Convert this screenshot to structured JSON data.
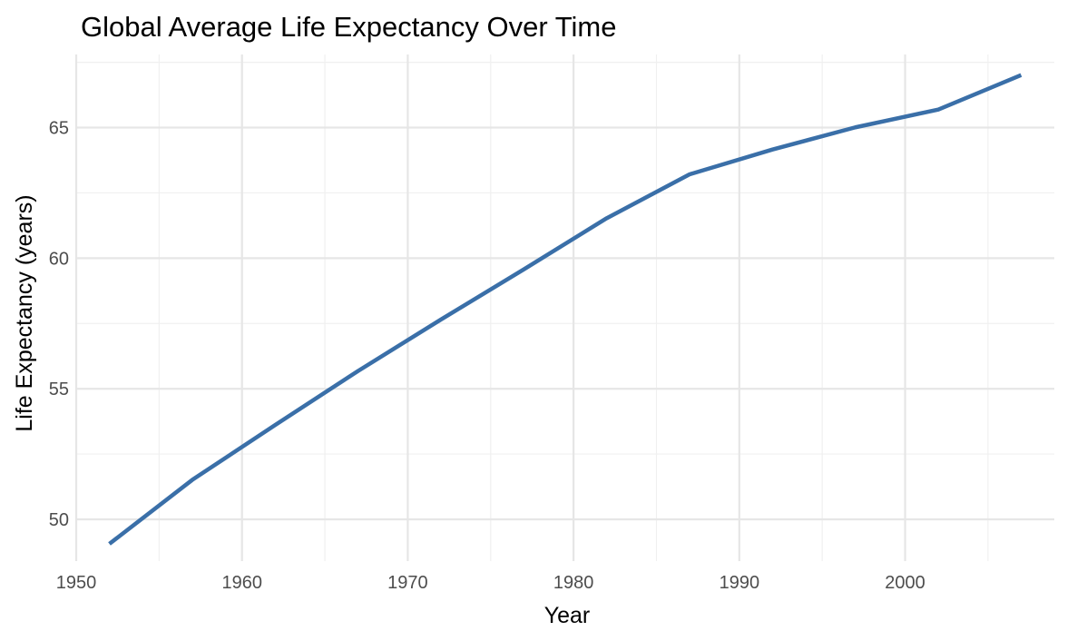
{
  "chart_data": {
    "type": "line",
    "title": "Global Average Life Expectancy Over Time",
    "xlabel": "Year",
    "ylabel": "Life Expectancy (years)",
    "xlim": [
      1950,
      2009
    ],
    "ylim": [
      48.4,
      67.8
    ],
    "x_ticks": [
      1950,
      1960,
      1970,
      1980,
      1990,
      2000
    ],
    "y_ticks": [
      50,
      55,
      60,
      65
    ],
    "grid": true,
    "legend": "none",
    "series": [
      {
        "color": "#3a6fa8",
        "x": [
          1952,
          1957,
          1962,
          1967,
          1972,
          1977,
          1982,
          1987,
          1992,
          1997,
          2002,
          2007
        ],
        "values": [
          49.06,
          51.51,
          53.61,
          55.68,
          57.65,
          59.57,
          61.53,
          63.21,
          64.16,
          65.01,
          65.69,
          67.01
        ]
      }
    ]
  }
}
